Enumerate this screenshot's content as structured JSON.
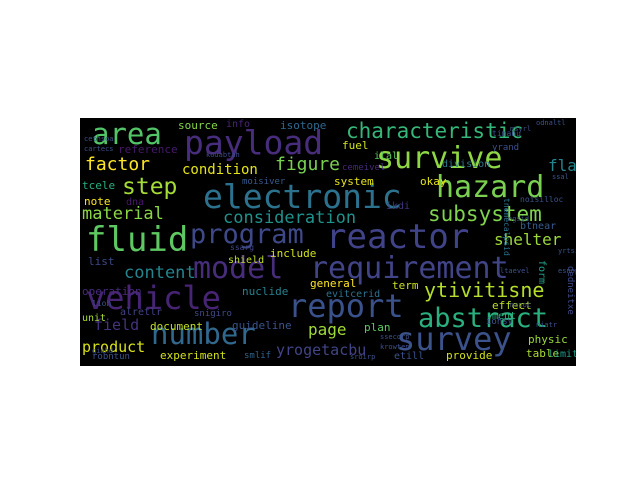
{
  "colors": {
    "background": "#000000",
    "page": "#ffffff"
  },
  "words": [
    {
      "text": "vehicle",
      "color": "#482475"
    },
    {
      "text": "survey",
      "color": "#3b528b"
    },
    {
      "text": "fluid",
      "color": "#5ec962"
    },
    {
      "text": "model",
      "color": "#472d7b"
    },
    {
      "text": "requirement",
      "color": "#414487"
    },
    {
      "text": "electronic",
      "color": "#2c728e"
    },
    {
      "text": "reactor",
      "color": "#404387"
    },
    {
      "text": "report",
      "color": "#3a528b"
    },
    {
      "text": "payload",
      "color": "#472d7b"
    },
    {
      "text": "number",
      "color": "#31688e"
    },
    {
      "text": "survive",
      "color": "#8fd744"
    },
    {
      "text": "hazard",
      "color": "#7ad151"
    },
    {
      "text": "abstract",
      "color": "#2ab07f"
    },
    {
      "text": "program",
      "color": "#3e4989"
    },
    {
      "text": "area",
      "color": "#52c569"
    },
    {
      "text": "characteristic",
      "color": "#35b779"
    },
    {
      "text": "subsystem",
      "color": "#7fd34e"
    },
    {
      "text": "step",
      "color": "#a5db36"
    },
    {
      "text": "ytivitisne",
      "color": "#b5de2b"
    },
    {
      "text": "factor",
      "color": "#fde725"
    },
    {
      "text": "content",
      "color": "#25858e"
    },
    {
      "text": "material",
      "color": "#8bd646"
    },
    {
      "text": "consideration",
      "color": "#20928c"
    },
    {
      "text": "figure",
      "color": "#7ad151"
    },
    {
      "text": "shelter",
      "color": "#9dd93b"
    },
    {
      "text": "page",
      "color": "#a0da39"
    },
    {
      "text": "field",
      "color": "#46327e"
    },
    {
      "text": "product",
      "color": "#d8e219"
    },
    {
      "text": "condition",
      "color": "#e5e419"
    },
    {
      "text": "yrogetacbu",
      "color": "#414487"
    },
    {
      "text": "flare",
      "color": "#25858e"
    },
    {
      "text": "plan",
      "color": "#5ec962"
    },
    {
      "text": "document",
      "color": "#c2df23"
    },
    {
      "text": "experiment",
      "color": "#d2e21b"
    },
    {
      "text": "guideline",
      "color": "#3b528b"
    },
    {
      "text": "include",
      "color": "#d2e21b"
    },
    {
      "text": "nuclide",
      "color": "#26828e"
    },
    {
      "text": "operation",
      "color": "#472a7a"
    },
    {
      "text": "reference",
      "color": "#48186a"
    },
    {
      "text": "source",
      "color": "#86d549"
    },
    {
      "text": "isotope",
      "color": "#31688e"
    },
    {
      "text": "general",
      "color": "#fde725"
    },
    {
      "text": "list",
      "color": "#3e4a89"
    },
    {
      "text": "note",
      "color": "#fde725"
    },
    {
      "text": "tcele",
      "color": "#2ab07f"
    },
    {
      "text": "system",
      "color": "#e5e419"
    },
    {
      "text": "okay",
      "color": "#e5e419"
    },
    {
      "text": "fuel",
      "color": "#d2e21b"
    },
    {
      "text": "term",
      "color": "#c8e020"
    },
    {
      "text": "provide",
      "color": "#d2e21b"
    },
    {
      "text": "table",
      "color": "#a8db34"
    },
    {
      "text": "effect",
      "color": "#bddf26"
    },
    {
      "text": "physic",
      "color": "#9bd93c"
    },
    {
      "text": "shield",
      "color": "#bddf26"
    },
    {
      "text": "unit",
      "color": "#a8db34"
    },
    {
      "text": "alretlr",
      "color": "#404387"
    },
    {
      "text": "dna",
      "color": "#48186a"
    },
    {
      "text": "division",
      "color": "#2a788e"
    },
    {
      "text": "ment",
      "color": "#2ab07f"
    },
    {
      "text": "form",
      "color": "#1f9e89"
    },
    {
      "text": "limit",
      "color": "#1f9e89"
    },
    {
      "text": "btnear",
      "color": "#365c8d"
    },
    {
      "text": "etill",
      "color": "#3b528b"
    },
    {
      "text": "ikdi",
      "color": "#46327e"
    },
    {
      "text": "ilal",
      "color": "#5ec962"
    },
    {
      "text": "info",
      "color": "#482677"
    },
    {
      "text": "robntun",
      "color": "#3b528b"
    },
    {
      "text": "evitcerid",
      "color": "#2c728e"
    },
    {
      "text": "smlif",
      "color": "#32648e"
    },
    {
      "text": "dedneitxe",
      "color": "#3e4a89"
    },
    {
      "text": "iohsv",
      "color": "#3b528b"
    },
    {
      "text": "moisiver",
      "color": "#38598c"
    },
    {
      "text": "snigiro",
      "color": "#3e4a89"
    },
    {
      "text": "cemeivel",
      "color": "#482878"
    },
    {
      "text": "yrand",
      "color": "#3b528b"
    },
    {
      "text": "timanu",
      "color": "#3b528b"
    },
    {
      "text": "noisilloc",
      "color": "#3b528b"
    },
    {
      "text": "tnemecalpsid",
      "color": "#2c728e"
    },
    {
      "text": "cartecs",
      "color": "#3b528b"
    },
    {
      "text": "ssarg",
      "color": "#3e4a89"
    },
    {
      "text": "lioh",
      "color": "#3b528b"
    },
    {
      "text": "giahd",
      "color": "#3b528b"
    },
    {
      "text": "ssecorp",
      "color": "#3b528b"
    },
    {
      "text": "krowten",
      "color": "#3b528b"
    },
    {
      "text": "kodabtah",
      "color": "#3e4a89"
    },
    {
      "text": "ltaevel",
      "color": "#3b528b"
    },
    {
      "text": "sroirp",
      "color": "#3b528b"
    },
    {
      "text": "mapoc",
      "color": "#3b528b"
    },
    {
      "text": "cethsoa",
      "color": "#3b528b"
    },
    {
      "text": "ngsid",
      "color": "#3b528b"
    },
    {
      "text": "odnaltl",
      "color": "#3b528b"
    },
    {
      "text": "msyrl",
      "color": "#3b528b"
    },
    {
      "text": "ssal",
      "color": "#3b528b"
    },
    {
      "text": "niatr",
      "color": "#3b528b"
    },
    {
      "text": "yrtsi",
      "color": "#3b528b"
    },
    {
      "text": "esnop",
      "color": "#3b528b"
    }
  ]
}
